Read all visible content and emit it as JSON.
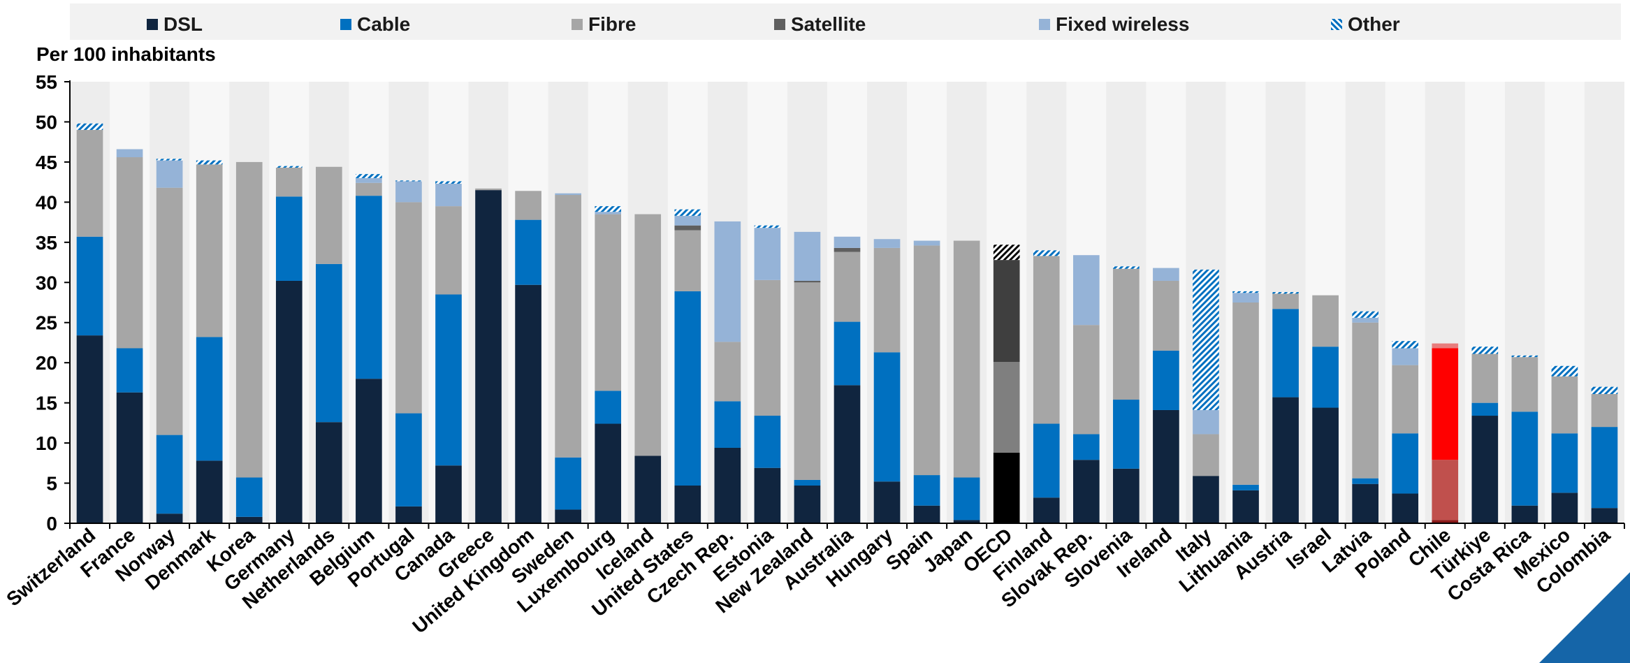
{
  "chart_data": {
    "type": "bar",
    "stacked": true,
    "ylabel": "Per 100 inhabitants",
    "ylim": [
      0,
      55
    ],
    "yticks": [
      0,
      5,
      10,
      15,
      20,
      25,
      30,
      35,
      40,
      45,
      50,
      55
    ],
    "grid": false,
    "legend_position": "top",
    "categories": [
      "Switzerland",
      "France",
      "Norway",
      "Denmark",
      "Korea",
      "Germany",
      "Netherlands",
      "Belgium",
      "Portugal",
      "Canada",
      "Greece",
      "United Kingdom",
      "Sweden",
      "Luxembourg",
      "Iceland",
      "United States",
      "Czech Rep.",
      "Estonia",
      "New Zealand",
      "Australia",
      "Hungary",
      "Spain",
      "Japan",
      "OECD",
      "Finland",
      "Slovak Rep.",
      "Slovenia",
      "Ireland",
      "Italy",
      "Lithuania",
      "Austria",
      "Israel",
      "Latvia",
      "Poland",
      "Chile",
      "Türkiye",
      "Costa Rica",
      "Mexico",
      "Colombia"
    ],
    "highlight": {
      "OECD": "oecd",
      "Chile": "chile"
    },
    "series": [
      {
        "name": "DSL",
        "color": "#10253f",
        "values": [
          23.4,
          16.3,
          1.2,
          7.8,
          0.8,
          30.2,
          12.6,
          18.0,
          2.1,
          7.2,
          41.5,
          29.7,
          1.7,
          12.4,
          8.4,
          4.7,
          9.4,
          6.9,
          4.7,
          17.2,
          5.2,
          2.2,
          0.4,
          8.8,
          3.2,
          7.9,
          6.8,
          14.1,
          5.9,
          4.1,
          15.7,
          14.4,
          4.9,
          3.7,
          0.4,
          13.4,
          2.2,
          3.8,
          1.9
        ]
      },
      {
        "name": "Cable",
        "color": "#0070c0",
        "values": [
          12.3,
          5.5,
          9.8,
          15.4,
          4.9,
          10.5,
          19.7,
          22.8,
          11.6,
          21.3,
          0,
          8.1,
          6.5,
          4.1,
          0,
          24.2,
          5.8,
          6.5,
          0.7,
          7.9,
          16.1,
          3.8,
          5.3,
          0,
          9.2,
          3.2,
          8.6,
          7.4,
          0,
          0.7,
          11.0,
          7.6,
          0.7,
          7.5,
          0,
          1.6,
          11.7,
          7.4,
          10.1
        ]
      },
      {
        "name": "Fibre",
        "color": "#a6a6a6",
        "values": [
          13.3,
          23.8,
          30.8,
          21.5,
          39.3,
          3.6,
          12.1,
          1.6,
          26.3,
          11.0,
          0.2,
          3.6,
          32.7,
          22.0,
          30.1,
          7.6,
          7.4,
          16.9,
          24.6,
          8.7,
          13.0,
          28.6,
          29.5,
          11.3,
          20.9,
          13.6,
          16.3,
          8.7,
          5.2,
          22.7,
          1.9,
          6.4,
          19.4,
          8.5,
          7.5,
          6.1,
          6.8,
          7.1,
          4.1
        ]
      },
      {
        "name": "Satellite",
        "color": "#5f5f5f",
        "values": [
          0,
          0,
          0,
          0,
          0,
          0,
          0,
          0,
          0,
          0,
          0,
          0,
          0,
          0,
          0,
          0.6,
          0,
          0,
          0.2,
          0.5,
          0,
          0,
          0,
          12.7,
          0,
          0,
          0,
          0,
          0,
          0,
          0,
          0,
          0,
          0,
          0,
          0,
          0,
          0,
          0
        ]
      },
      {
        "name": "Fixed wireless",
        "color": "#95b3d7",
        "values": [
          0,
          1.0,
          3.4,
          0,
          0,
          0,
          0,
          0.6,
          2.6,
          2.8,
          0,
          0,
          0.2,
          0.3,
          0,
          1.2,
          15.0,
          6.5,
          6.1,
          1.4,
          1.1,
          0.6,
          0,
          0,
          0,
          8.7,
          0,
          1.6,
          3.0,
          1.2,
          0,
          0,
          0.6,
          2.1,
          13.9,
          0,
          0,
          0,
          0
        ]
      },
      {
        "name": "Other",
        "color": "#0070c0",
        "values": [
          0.8,
          0,
          0.2,
          0.5,
          0,
          0.2,
          0,
          0.5,
          0.1,
          0.3,
          0,
          0,
          0,
          0.7,
          0,
          0.8,
          0,
          0.3,
          0,
          0,
          0,
          0,
          0,
          1.9,
          0.7,
          0,
          0.3,
          0,
          17.5,
          0.2,
          0.2,
          0,
          0.8,
          0.9,
          0.6,
          0.9,
          0.2,
          1.3,
          0.9
        ]
      }
    ]
  }
}
